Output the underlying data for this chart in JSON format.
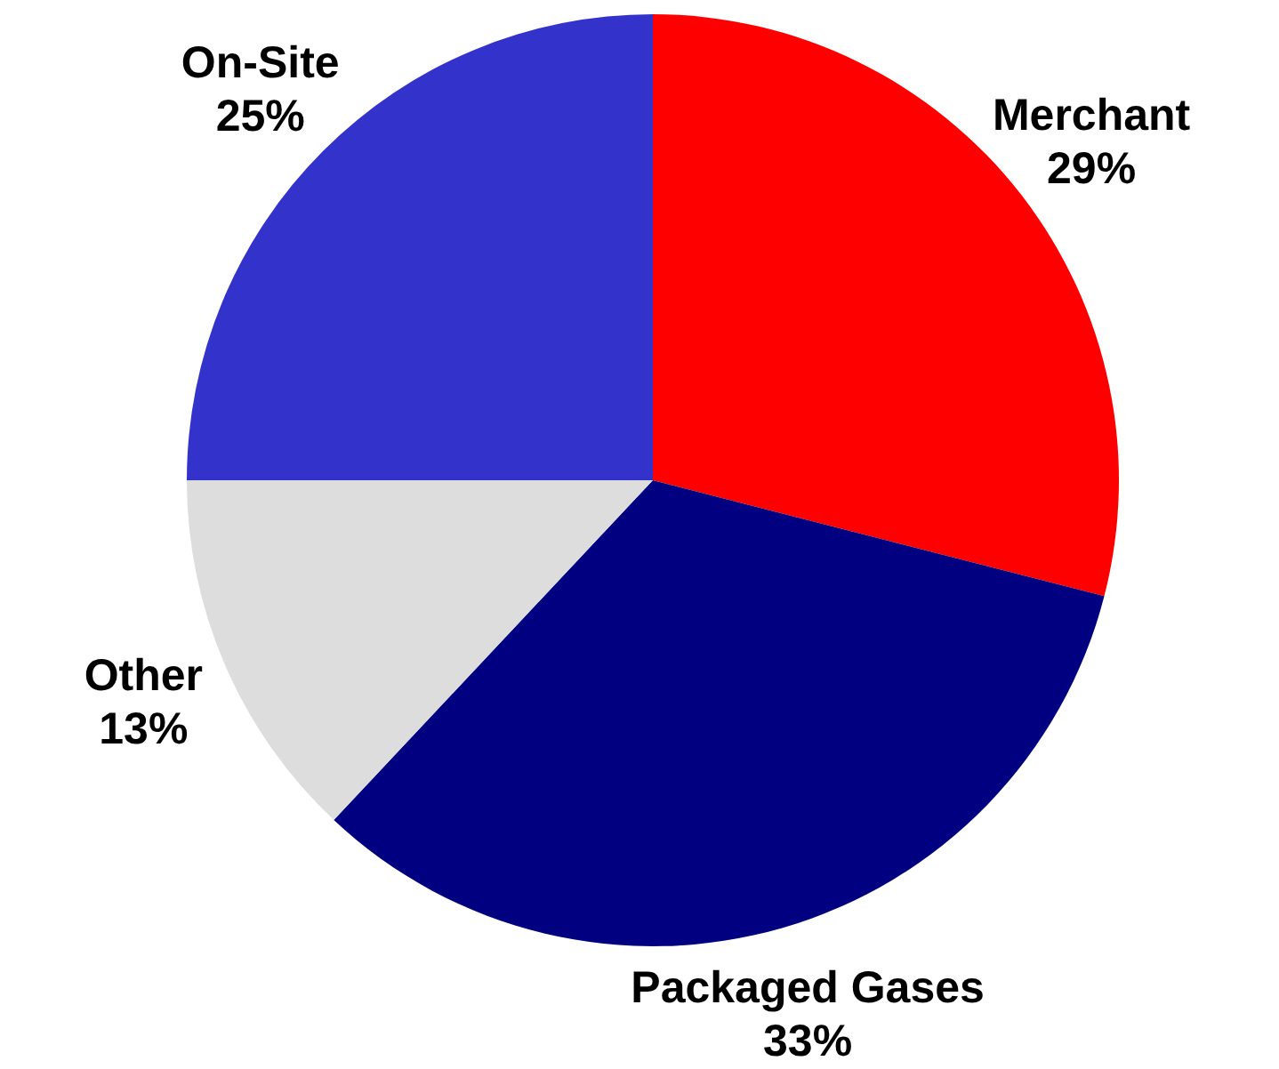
{
  "chart_data": {
    "type": "pie",
    "categories": [
      "Merchant",
      "Packaged Gases",
      "Other",
      "On-Site"
    ],
    "values": [
      29,
      33,
      13,
      25
    ],
    "colors": [
      "#ff0000",
      "#000080",
      "#dddddd",
      "#3333cc"
    ],
    "value_labels": [
      "29%",
      "33%",
      "13%",
      "25%"
    ]
  }
}
